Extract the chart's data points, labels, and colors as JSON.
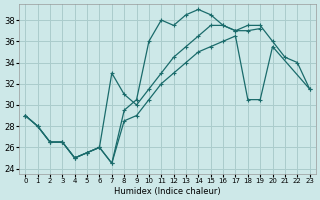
{
  "xlabel": "Humidex (Indice chaleur)",
  "background_color": "#cde8e8",
  "grid_color": "#aacccc",
  "line_color": "#1a6b6b",
  "xlim": [
    -0.5,
    23.5
  ],
  "ylim": [
    23.5,
    39.5
  ],
  "xticks": [
    0,
    1,
    2,
    3,
    4,
    5,
    6,
    7,
    8,
    9,
    10,
    11,
    12,
    13,
    14,
    15,
    16,
    17,
    18,
    19,
    20,
    21,
    22,
    23
  ],
  "yticks": [
    24,
    26,
    28,
    30,
    32,
    34,
    36,
    38
  ],
  "series": [
    {
      "x": [
        0,
        1,
        2,
        3,
        4,
        5,
        6,
        7,
        8,
        9,
        10,
        11,
        12,
        13,
        14,
        15,
        16,
        17,
        18,
        19
      ],
      "y": [
        29.0,
        28.0,
        26.5,
        26.5,
        25.0,
        25.5,
        26.0,
        24.5,
        29.5,
        30.5,
        36.0,
        38.0,
        37.5,
        38.5,
        39.0,
        38.5,
        37.5,
        37.0,
        37.0,
        37.2
      ]
    },
    {
      "x": [
        0,
        1,
        2,
        3,
        4,
        5,
        6,
        7,
        8,
        9,
        10,
        11,
        12,
        13,
        14,
        15,
        16,
        17,
        18,
        19,
        20,
        21,
        22,
        23
      ],
      "y": [
        29.0,
        28.0,
        26.5,
        26.5,
        25.0,
        25.5,
        26.0,
        33.0,
        31.0,
        30.0,
        31.5,
        33.0,
        34.5,
        35.5,
        36.5,
        37.5,
        37.5,
        37.0,
        37.5,
        37.5,
        36.0,
        34.5,
        34.0,
        31.5
      ]
    },
    {
      "x": [
        0,
        1,
        2,
        3,
        4,
        5,
        6,
        7,
        8,
        9,
        10,
        11,
        12,
        13,
        14,
        15,
        16,
        17,
        18,
        19,
        20,
        23
      ],
      "y": [
        29.0,
        28.0,
        26.5,
        26.5,
        25.0,
        25.5,
        26.0,
        24.5,
        28.5,
        29.0,
        30.5,
        32.0,
        33.0,
        34.0,
        35.0,
        35.5,
        36.0,
        36.5,
        30.5,
        30.5,
        35.5,
        31.5
      ]
    }
  ]
}
